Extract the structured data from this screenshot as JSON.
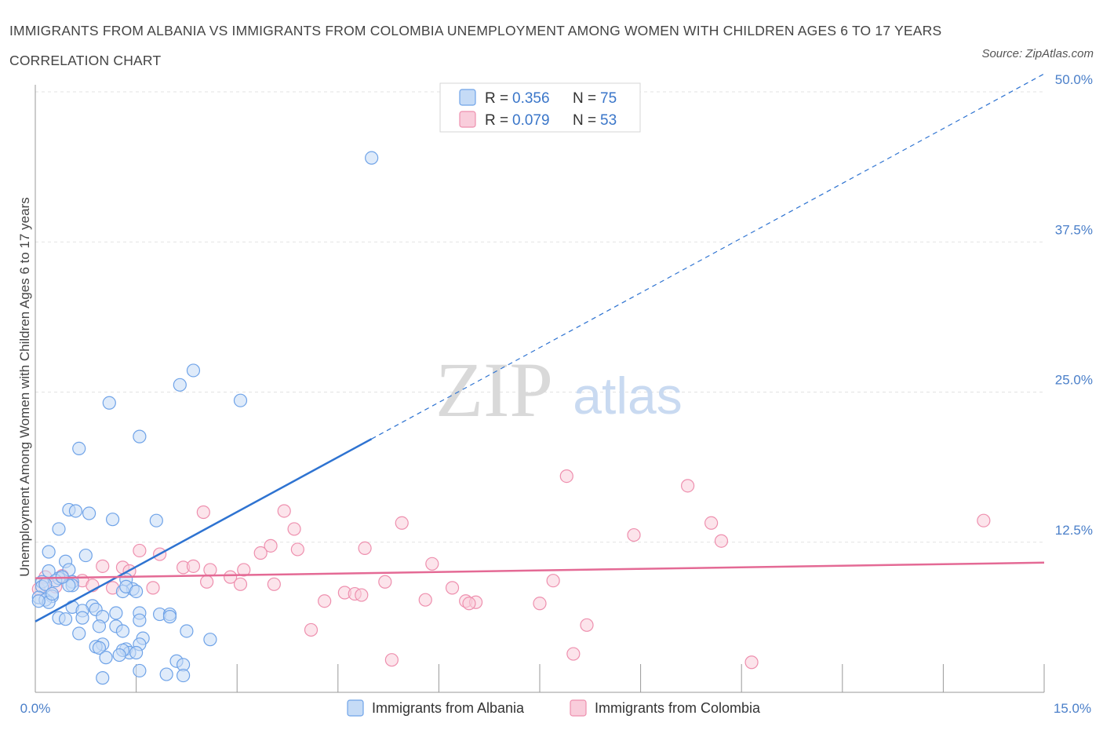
{
  "title": "IMMIGRANTS FROM ALBANIA VS IMMIGRANTS FROM COLOMBIA UNEMPLOYMENT AMONG WOMEN WITH CHILDREN AGES 6 TO 17 YEARS CORRELATION CHART",
  "source": "Source: ZipAtlas.com",
  "watermark": {
    "zip": "ZIP",
    "atlas": "atlas"
  },
  "legend": {
    "r_label": "R =",
    "n_label": "N =",
    "rows": [
      {
        "r": "0.356",
        "n": "75"
      },
      {
        "r": "0.079",
        "n": "53"
      }
    ]
  },
  "chart_data": {
    "type": "scatter",
    "xlabel": "",
    "ylabel": "Unemployment Among Women with Children Ages 6 to 17 years",
    "xlim": [
      0,
      15
    ],
    "ylim": [
      0,
      50
    ],
    "x_tick_labels": [
      "0.0%",
      "15.0%"
    ],
    "y_ticks": [
      12.5,
      25,
      37.5,
      50
    ],
    "y_tick_labels": [
      "12.5%",
      "25.0%",
      "37.5%",
      "50.0%"
    ],
    "grid": true,
    "legend_position": "top-center",
    "series": [
      {
        "name": "Immigrants from Albania",
        "color": "#6fa3e8",
        "fill": "#c5dbf6",
        "trend": {
          "x0": 0,
          "y0": 5.9,
          "x1": 15,
          "y1": 51.5,
          "solid_until_x": 5
        },
        "points": [
          [
            5.0,
            44.5
          ],
          [
            2.35,
            26.8
          ],
          [
            2.15,
            25.6
          ],
          [
            3.05,
            24.3
          ],
          [
            1.1,
            24.1
          ],
          [
            1.55,
            21.3
          ],
          [
            0.65,
            20.3
          ],
          [
            0.5,
            15.2
          ],
          [
            0.6,
            15.1
          ],
          [
            0.8,
            14.9
          ],
          [
            1.15,
            14.4
          ],
          [
            1.8,
            14.3
          ],
          [
            0.35,
            13.6
          ],
          [
            0.2,
            11.7
          ],
          [
            0.75,
            11.4
          ],
          [
            0.45,
            10.9
          ],
          [
            0.2,
            10.1
          ],
          [
            0.5,
            10.2
          ],
          [
            0.35,
            9.5
          ],
          [
            1.35,
            9.4
          ],
          [
            0.1,
            9.2
          ],
          [
            0.3,
            9.3
          ],
          [
            0.55,
            9.2
          ],
          [
            0.55,
            8.9
          ],
          [
            0.1,
            8.8
          ],
          [
            0.5,
            8.9
          ],
          [
            1.45,
            8.6
          ],
          [
            1.3,
            8.4
          ],
          [
            1.35,
            8.8
          ],
          [
            1.5,
            8.4
          ],
          [
            0.25,
            8.0
          ],
          [
            0.05,
            7.9
          ],
          [
            0.15,
            7.7
          ],
          [
            0.2,
            7.5
          ],
          [
            0.05,
            7.6
          ],
          [
            0.55,
            7.1
          ],
          [
            0.85,
            7.2
          ],
          [
            0.7,
            6.8
          ],
          [
            0.9,
            6.9
          ],
          [
            1.2,
            6.6
          ],
          [
            1.55,
            6.6
          ],
          [
            1.85,
            6.5
          ],
          [
            2.0,
            6.5
          ],
          [
            2.0,
            6.3
          ],
          [
            0.35,
            6.2
          ],
          [
            0.45,
            6.1
          ],
          [
            0.7,
            6.2
          ],
          [
            1.0,
            6.3
          ],
          [
            1.55,
            6.0
          ],
          [
            0.95,
            5.5
          ],
          [
            1.2,
            5.5
          ],
          [
            2.25,
            5.1
          ],
          [
            1.3,
            5.1
          ],
          [
            0.65,
            4.9
          ],
          [
            1.6,
            4.5
          ],
          [
            2.6,
            4.4
          ],
          [
            1.0,
            4.0
          ],
          [
            1.55,
            4.0
          ],
          [
            0.9,
            3.8
          ],
          [
            1.35,
            3.6
          ],
          [
            1.4,
            3.3
          ],
          [
            1.5,
            3.3
          ],
          [
            1.3,
            3.5
          ],
          [
            0.95,
            3.7
          ],
          [
            1.25,
            3.1
          ],
          [
            1.05,
            2.9
          ],
          [
            2.1,
            2.6
          ],
          [
            2.2,
            2.3
          ],
          [
            1.55,
            1.8
          ],
          [
            1.95,
            1.5
          ],
          [
            2.2,
            1.4
          ],
          [
            1.0,
            1.2
          ],
          [
            0.15,
            9.0
          ],
          [
            0.25,
            8.2
          ],
          [
            0.4,
            9.6
          ]
        ]
      },
      {
        "name": "Immigrants from Colombia",
        "color": "#ee8fae",
        "fill": "#f9cddb",
        "trend": {
          "x0": 0,
          "y0": 9.5,
          "x1": 15,
          "y1": 10.8,
          "solid_until_x": 15
        },
        "points": [
          [
            7.9,
            18.0
          ],
          [
            9.7,
            17.2
          ],
          [
            2.5,
            15.0
          ],
          [
            3.7,
            15.1
          ],
          [
            3.85,
            13.6
          ],
          [
            5.45,
            14.1
          ],
          [
            10.05,
            14.1
          ],
          [
            14.1,
            14.3
          ],
          [
            8.9,
            13.1
          ],
          [
            10.2,
            12.6
          ],
          [
            3.5,
            12.2
          ],
          [
            3.9,
            11.9
          ],
          [
            4.9,
            12.0
          ],
          [
            1.55,
            11.8
          ],
          [
            1.85,
            11.5
          ],
          [
            3.35,
            11.6
          ],
          [
            5.9,
            10.7
          ],
          [
            1.0,
            10.5
          ],
          [
            1.3,
            10.4
          ],
          [
            2.2,
            10.4
          ],
          [
            2.35,
            10.5
          ],
          [
            1.4,
            10.1
          ],
          [
            2.6,
            10.2
          ],
          [
            3.1,
            10.2
          ],
          [
            0.15,
            9.6
          ],
          [
            0.4,
            9.7
          ],
          [
            0.7,
            9.3
          ],
          [
            2.55,
            9.2
          ],
          [
            2.9,
            9.6
          ],
          [
            3.05,
            9.0
          ],
          [
            3.55,
            9.0
          ],
          [
            5.2,
            9.2
          ],
          [
            7.7,
            9.3
          ],
          [
            0.3,
            8.8
          ],
          [
            0.85,
            8.9
          ],
          [
            1.15,
            8.7
          ],
          [
            1.75,
            8.7
          ],
          [
            4.6,
            8.3
          ],
          [
            4.75,
            8.2
          ],
          [
            4.85,
            8.1
          ],
          [
            6.2,
            8.7
          ],
          [
            0.05,
            8.6
          ],
          [
            4.3,
            7.6
          ],
          [
            6.4,
            7.6
          ],
          [
            6.55,
            7.5
          ],
          [
            6.45,
            7.4
          ],
          [
            7.5,
            7.4
          ],
          [
            5.8,
            7.7
          ],
          [
            8.2,
            5.6
          ],
          [
            4.1,
            5.2
          ],
          [
            8.0,
            3.2
          ],
          [
            5.3,
            2.7
          ],
          [
            10.65,
            2.5
          ]
        ]
      }
    ]
  }
}
